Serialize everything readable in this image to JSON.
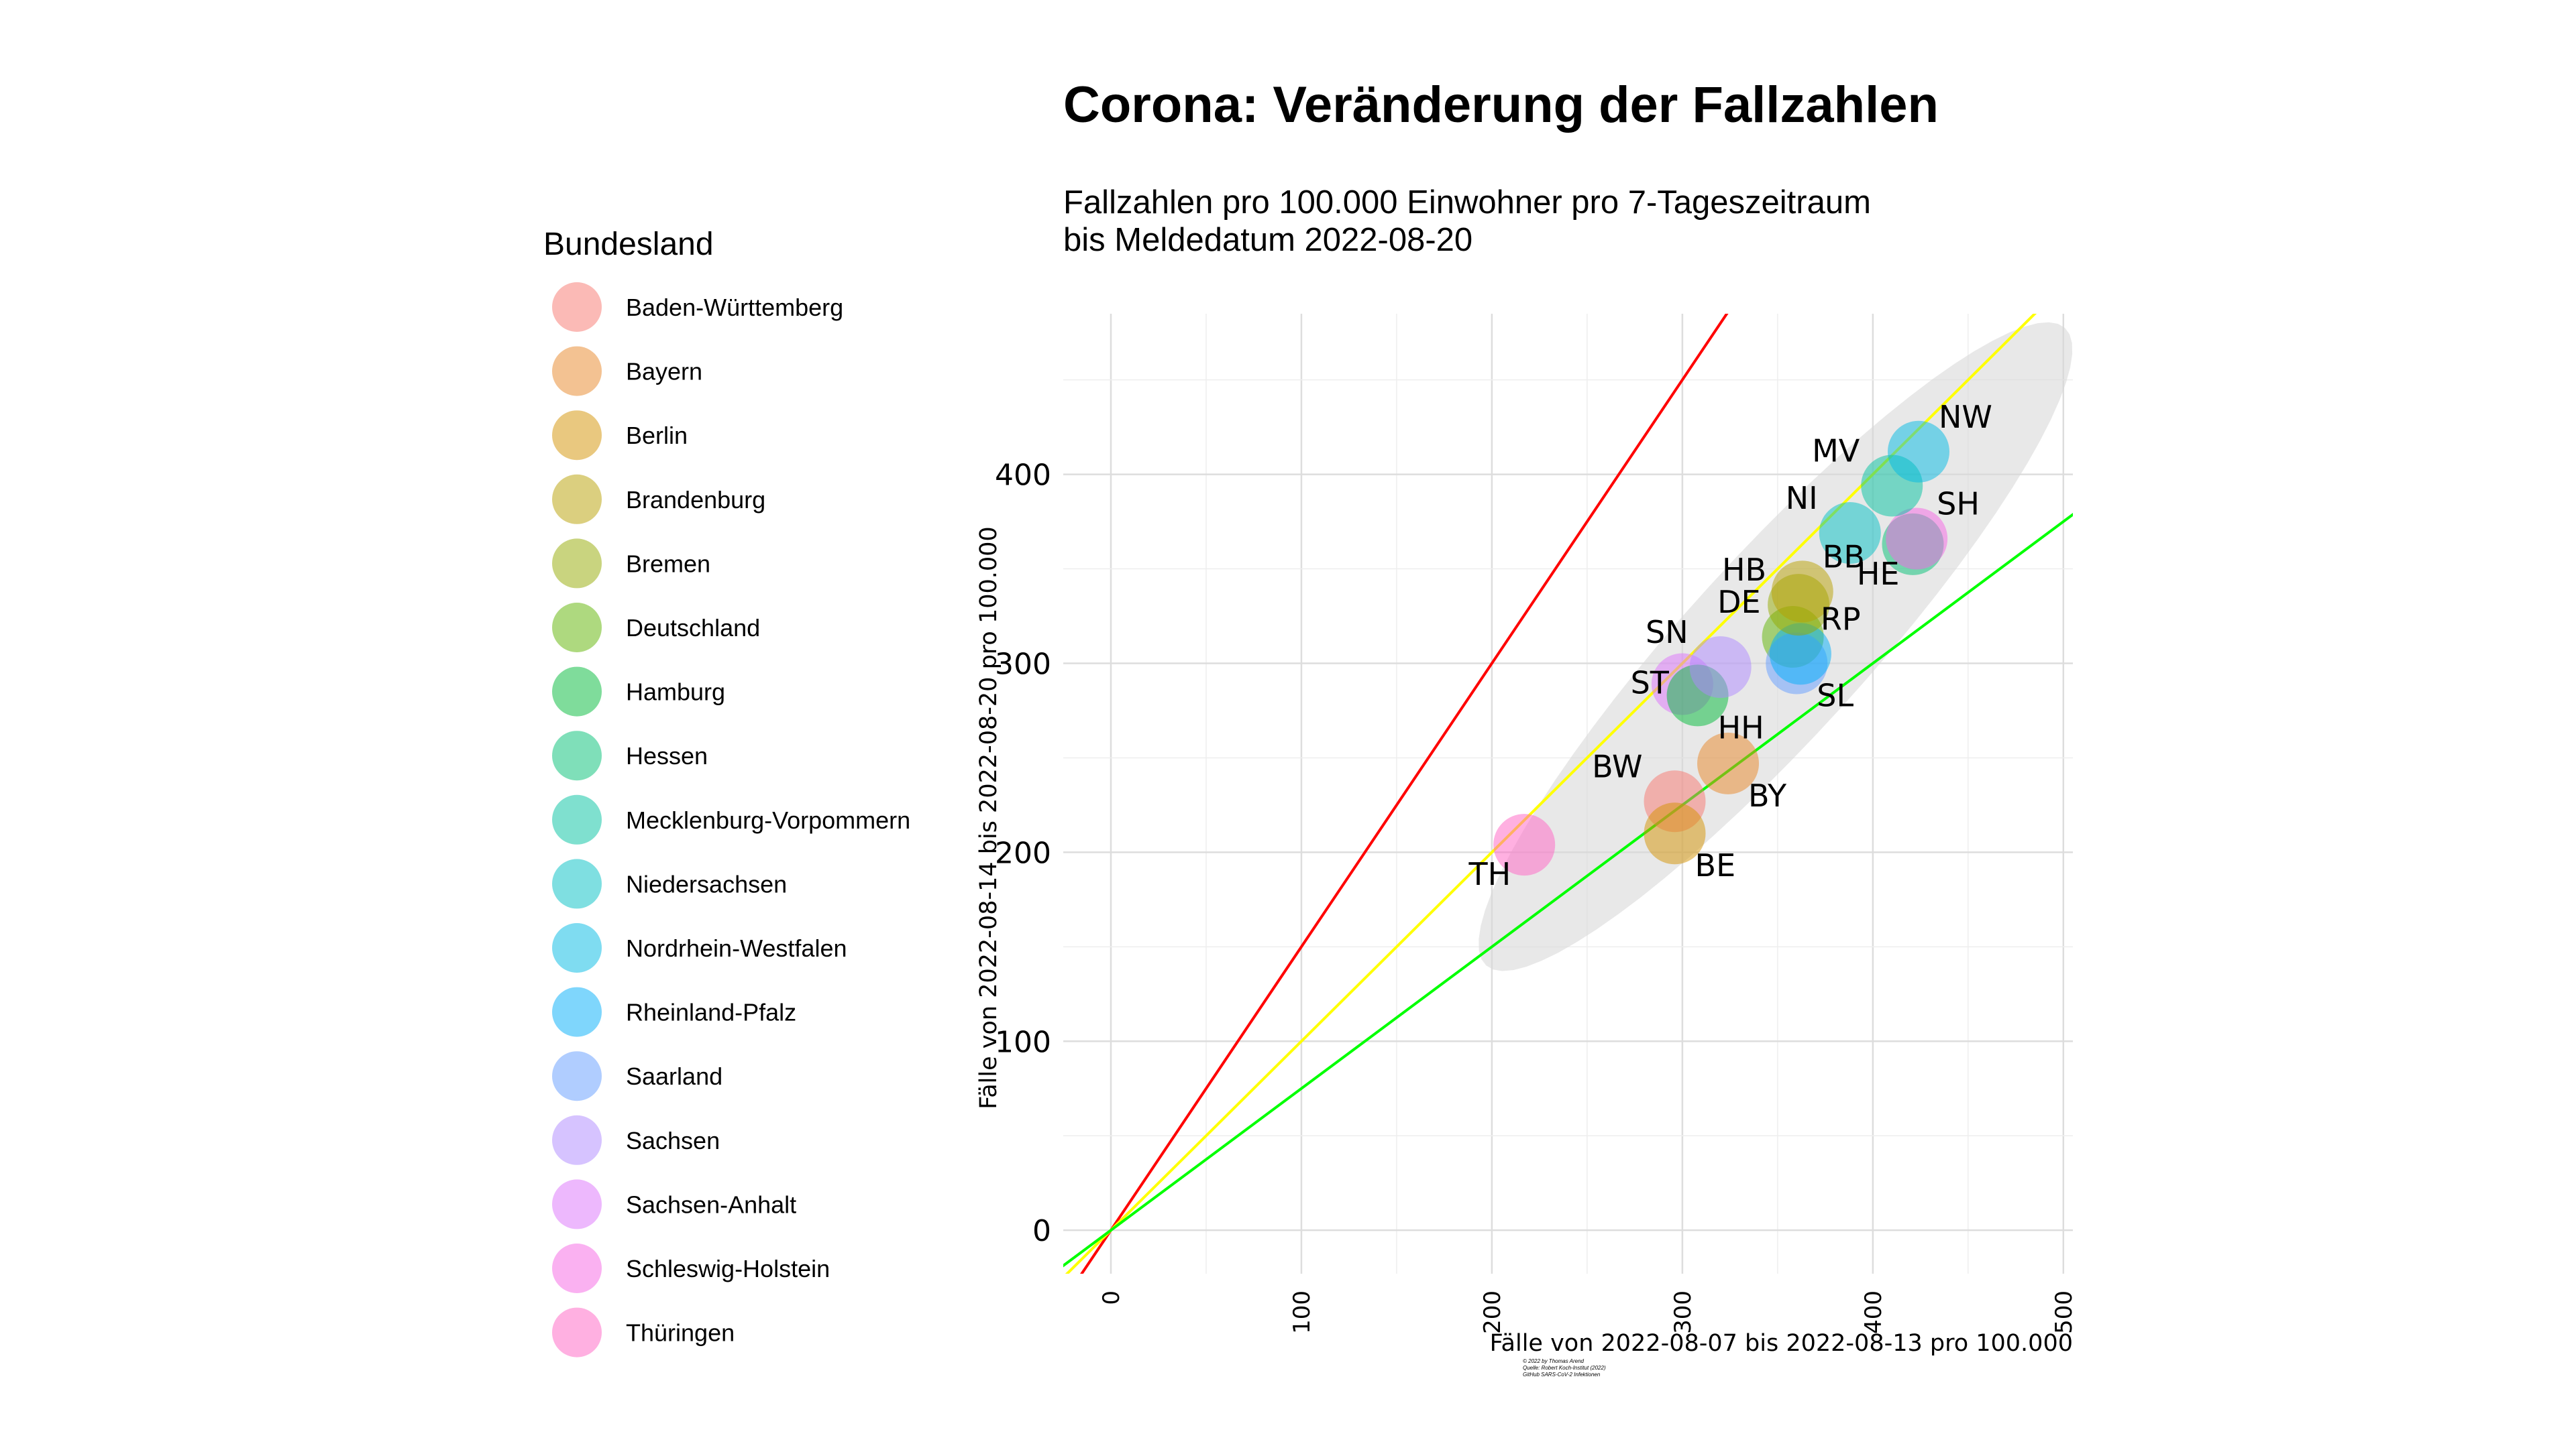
{
  "chart_data": {
    "type": "scatter",
    "title": "Corona: Veränderung der Fallzahlen",
    "subtitle_line1": "Fallzahlen pro 100.000 Einwohner pro 7-Tageszeitraum",
    "subtitle_line2": "bis Meldedatum 2022-08-20",
    "xlabel": "Fälle von 2022-08-07 bis 2022-08-13 pro 100.000",
    "ylabel": "Fälle von 2022-08-14 bis 2022-08-20 pro 100.000",
    "caption_lines": [
      "© 2022 by Thomas Arend",
      "Quelle: Robert Koch-Institut (2022)",
      "GitHub SARS-CoV-2 Infektionen"
    ],
    "xlim": [
      -25,
      505
    ],
    "ylim": [
      -23,
      485
    ],
    "x_ticks": [
      0,
      100,
      200,
      300,
      400,
      500
    ],
    "y_ticks": [
      0,
      100,
      200,
      300,
      400
    ],
    "grid": true,
    "legend_position": "left",
    "legend_title": "Bundesland",
    "legend": [
      {
        "name": "Baden-Württemberg",
        "color": "#F8766D"
      },
      {
        "name": "Bayern",
        "color": "#E88526"
      },
      {
        "name": "Berlin",
        "color": "#D39200"
      },
      {
        "name": "Brandenburg",
        "color": "#B79F00"
      },
      {
        "name": "Bremen",
        "color": "#93AA00"
      },
      {
        "name": "Deutschland",
        "color": "#5EB300"
      },
      {
        "name": "Hamburg",
        "color": "#00BA38"
      },
      {
        "name": "Hessen",
        "color": "#00BF74"
      },
      {
        "name": "Mecklenburg-Vorpommern",
        "color": "#00C19F"
      },
      {
        "name": "Niedersachsen",
        "color": "#00BFC4"
      },
      {
        "name": "Nordrhein-Westfalen",
        "color": "#00B9E3"
      },
      {
        "name": "Rheinland-Pfalz",
        "color": "#00ADFA"
      },
      {
        "name": "Saarland",
        "color": "#619CFF"
      },
      {
        "name": "Sachsen",
        "color": "#AE87FF"
      },
      {
        "name": "Sachsen-Anhalt",
        "color": "#DB72FB"
      },
      {
        "name": "Schleswig-Holstein",
        "color": "#F564E3"
      },
      {
        "name": "Thüringen",
        "color": "#FF61C3"
      }
    ],
    "points": [
      {
        "label": "TH",
        "x": 217,
        "y": 204,
        "color": "#FF61C3",
        "label_pos": "bottom-left"
      },
      {
        "label": "BW",
        "x": 296,
        "y": 227,
        "color": "#F8766D",
        "label_pos": "top-left"
      },
      {
        "label": "BE",
        "x": 296,
        "y": 210,
        "color": "#D39200",
        "label_pos": "bottom-right"
      },
      {
        "label": "BY",
        "x": 324,
        "y": 247,
        "color": "#E88526",
        "label_pos": "bottom-right"
      },
      {
        "label": "ST",
        "x": 300,
        "y": 289,
        "color": "#DB72FB",
        "label_pos": "left"
      },
      {
        "label": "HH",
        "x": 308,
        "y": 283,
        "color": "#00BA38",
        "label_pos": "bottom-right"
      },
      {
        "label": "SN",
        "x": 320,
        "y": 298,
        "color": "#AE87FF",
        "label_pos": "top-left"
      },
      {
        "label": "DE",
        "x": 358,
        "y": 314,
        "color": "#5EB300",
        "label_pos": "top-left"
      },
      {
        "label": "SL",
        "x": 360,
        "y": 300,
        "color": "#619CFF",
        "label_pos": "bottom-right"
      },
      {
        "label": "RP",
        "x": 362,
        "y": 305,
        "color": "#00ADFA",
        "label_pos": "top-right"
      },
      {
        "label": "HB",
        "x": 361,
        "y": 331,
        "color": "#93AA00",
        "label_pos": "top-left"
      },
      {
        "label": "BB",
        "x": 363,
        "y": 338,
        "color": "#B79F00",
        "label_pos": "top-right"
      },
      {
        "label": "NI",
        "x": 388,
        "y": 369,
        "color": "#00BFC4",
        "label_pos": "top-left"
      },
      {
        "label": "HE",
        "x": 421,
        "y": 363,
        "color": "#00BF74",
        "label_pos": "bottom-left"
      },
      {
        "label": "SH",
        "x": 423,
        "y": 366,
        "color": "#F564E3",
        "label_pos": "top-right"
      },
      {
        "label": "MV",
        "x": 410,
        "y": 394,
        "color": "#00C19F",
        "label_pos": "top-left"
      },
      {
        "label": "NW",
        "x": 424,
        "y": 412,
        "color": "#00B9E3",
        "label_pos": "top-right"
      }
    ],
    "reference_lines": [
      {
        "slope": 1.5,
        "color": "#FF0000"
      },
      {
        "slope": 1.0,
        "color": "#FFFF00"
      },
      {
        "slope": 0.75,
        "color": "#00FF00"
      }
    ],
    "confidence_ellipse_color": "#D9D9D9"
  }
}
